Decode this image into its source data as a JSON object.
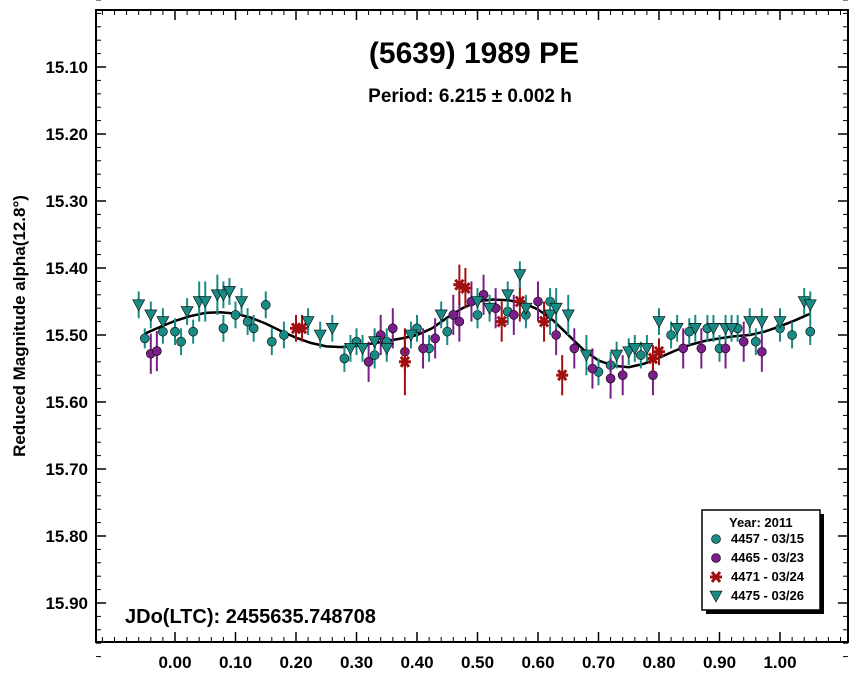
{
  "chart_data": {
    "type": "scatter",
    "title": "(5639) 1989 PE",
    "subtitle": "Period: 6.215 ± 0.002 h",
    "ylabel": "Reduced Magnitude alpha(12.8°)",
    "xlabel": "",
    "annotation": "JDo(LTC): 2455635.748708",
    "xlim": [
      -0.13,
      1.12
    ],
    "ylim": [
      15.0,
      15.99
    ],
    "y_inverted": true,
    "grid": false,
    "x_ticks": [
      "0.00",
      "0.10",
      "0.20",
      "0.30",
      "0.40",
      "0.50",
      "0.60",
      "0.70",
      "0.80",
      "0.90",
      "1.00"
    ],
    "x_tick_values": [
      0,
      0.1,
      0.2,
      0.3,
      0.4,
      0.5,
      0.6,
      0.7,
      0.8,
      0.9,
      1.0
    ],
    "y_ticks": [
      "15.10",
      "15.20",
      "15.30",
      "15.40",
      "15.50",
      "15.60",
      "15.70",
      "15.80",
      "15.90"
    ],
    "y_tick_values": [
      15.1,
      15.2,
      15.3,
      15.4,
      15.5,
      15.6,
      15.7,
      15.8,
      15.9
    ],
    "legend": {
      "title": "Year: 2011",
      "placement": "bottom-right",
      "entries": [
        {
          "label": "4457 - 03/15",
          "marker": "circle",
          "color": "#1a8a84"
        },
        {
          "label": "4465 - 03/23",
          "marker": "circle",
          "color": "#7a1f8a"
        },
        {
          "label": "4471 - 03/24",
          "marker": "asterisk",
          "color": "#a01010"
        },
        {
          "label": "4475 - 03/26",
          "marker": "triangle-down",
          "color": "#1a8a84"
        }
      ]
    },
    "fit_curve": {
      "color": "#000000",
      "x": [
        -0.05,
        -0.025,
        0.0,
        0.025,
        0.05,
        0.075,
        0.1,
        0.125,
        0.15,
        0.175,
        0.2,
        0.225,
        0.25,
        0.275,
        0.3,
        0.325,
        0.35,
        0.375,
        0.4,
        0.425,
        0.45,
        0.475,
        0.5,
        0.525,
        0.55,
        0.575,
        0.6,
        0.625,
        0.65,
        0.675,
        0.7,
        0.725,
        0.75,
        0.775,
        0.8,
        0.825,
        0.85,
        0.875,
        0.9,
        0.925,
        0.95,
        0.975,
        1.0,
        1.025,
        1.05
      ],
      "y": [
        15.498,
        15.488,
        15.479,
        15.472,
        15.467,
        15.466,
        15.468,
        15.474,
        15.483,
        15.494,
        15.504,
        15.512,
        15.517,
        15.518,
        15.516,
        15.513,
        15.509,
        15.505,
        15.5,
        15.49,
        15.474,
        15.46,
        15.45,
        15.447,
        15.448,
        15.452,
        15.462,
        15.478,
        15.5,
        15.522,
        15.538,
        15.546,
        15.548,
        15.543,
        15.534,
        15.524,
        15.515,
        15.509,
        15.505,
        15.502,
        15.5,
        15.495,
        15.487,
        15.478,
        15.468
      ]
    },
    "series": [
      {
        "name": "4457 - 03/15",
        "marker": "circle",
        "color": "#1a8a84",
        "points": [
          {
            "x": -0.05,
            "y": 15.505,
            "e": 0.015
          },
          {
            "x": -0.02,
            "y": 15.495,
            "e": 0.018
          },
          {
            "x": 0.0,
            "y": 15.495,
            "e": 0.02
          },
          {
            "x": 0.01,
            "y": 15.51,
            "e": 0.02
          },
          {
            "x": 0.03,
            "y": 15.495,
            "e": 0.018
          },
          {
            "x": 0.08,
            "y": 15.49,
            "e": 0.02
          },
          {
            "x": 0.1,
            "y": 15.47,
            "e": 0.02
          },
          {
            "x": 0.12,
            "y": 15.48,
            "e": 0.02
          },
          {
            "x": 0.13,
            "y": 15.49,
            "e": 0.02
          },
          {
            "x": 0.15,
            "y": 15.455,
            "e": 0.02
          },
          {
            "x": 0.16,
            "y": 15.51,
            "e": 0.02
          },
          {
            "x": 0.18,
            "y": 15.5,
            "e": 0.02
          },
          {
            "x": 0.28,
            "y": 15.535,
            "e": 0.02
          },
          {
            "x": 0.3,
            "y": 15.51,
            "e": 0.02
          },
          {
            "x": 0.33,
            "y": 15.53,
            "e": 0.02
          },
          {
            "x": 0.35,
            "y": 15.51,
            "e": 0.02
          },
          {
            "x": 0.4,
            "y": 15.49,
            "e": 0.02
          },
          {
            "x": 0.42,
            "y": 15.52,
            "e": 0.02
          },
          {
            "x": 0.45,
            "y": 15.495,
            "e": 0.02
          },
          {
            "x": 0.5,
            "y": 15.47,
            "e": 0.02
          },
          {
            "x": 0.55,
            "y": 15.465,
            "e": 0.02
          },
          {
            "x": 0.58,
            "y": 15.47,
            "e": 0.02
          },
          {
            "x": 0.62,
            "y": 15.45,
            "e": 0.02
          },
          {
            "x": 0.7,
            "y": 15.555,
            "e": 0.02
          },
          {
            "x": 0.72,
            "y": 15.545,
            "e": 0.02
          },
          {
            "x": 0.77,
            "y": 15.53,
            "e": 0.02
          },
          {
            "x": 0.82,
            "y": 15.5,
            "e": 0.02
          },
          {
            "x": 0.85,
            "y": 15.495,
            "e": 0.02
          },
          {
            "x": 0.88,
            "y": 15.49,
            "e": 0.02
          },
          {
            "x": 0.9,
            "y": 15.52,
            "e": 0.02
          },
          {
            "x": 0.93,
            "y": 15.49,
            "e": 0.02
          },
          {
            "x": 0.96,
            "y": 15.51,
            "e": 0.02
          },
          {
            "x": 1.0,
            "y": 15.49,
            "e": 0.02
          },
          {
            "x": 1.02,
            "y": 15.5,
            "e": 0.02
          },
          {
            "x": 1.05,
            "y": 15.495,
            "e": 0.02
          }
        ]
      },
      {
        "name": "4465 - 03/23",
        "marker": "circle",
        "color": "#7a1f8a",
        "points": [
          {
            "x": -0.04,
            "y": 15.528,
            "e": 0.03
          },
          {
            "x": -0.03,
            "y": 15.524,
            "e": 0.03
          },
          {
            "x": 0.32,
            "y": 15.54,
            "e": 0.03
          },
          {
            "x": 0.34,
            "y": 15.5,
            "e": 0.03
          },
          {
            "x": 0.36,
            "y": 15.49,
            "e": 0.03
          },
          {
            "x": 0.38,
            "y": 15.525,
            "e": 0.03
          },
          {
            "x": 0.41,
            "y": 15.52,
            "e": 0.03
          },
          {
            "x": 0.43,
            "y": 15.505,
            "e": 0.03
          },
          {
            "x": 0.46,
            "y": 15.47,
            "e": 0.03
          },
          {
            "x": 0.47,
            "y": 15.48,
            "e": 0.03
          },
          {
            "x": 0.49,
            "y": 15.45,
            "e": 0.03
          },
          {
            "x": 0.51,
            "y": 15.44,
            "e": 0.03
          },
          {
            "x": 0.53,
            "y": 15.46,
            "e": 0.03
          },
          {
            "x": 0.56,
            "y": 15.47,
            "e": 0.03
          },
          {
            "x": 0.6,
            "y": 15.45,
            "e": 0.03
          },
          {
            "x": 0.63,
            "y": 15.5,
            "e": 0.03
          },
          {
            "x": 0.66,
            "y": 15.52,
            "e": 0.03
          },
          {
            "x": 0.69,
            "y": 15.55,
            "e": 0.03
          },
          {
            "x": 0.72,
            "y": 15.565,
            "e": 0.03
          },
          {
            "x": 0.74,
            "y": 15.56,
            "e": 0.03
          },
          {
            "x": 0.79,
            "y": 15.56,
            "e": 0.03
          },
          {
            "x": 0.84,
            "y": 15.52,
            "e": 0.03
          },
          {
            "x": 0.87,
            "y": 15.52,
            "e": 0.03
          },
          {
            "x": 0.91,
            "y": 15.52,
            "e": 0.03
          },
          {
            "x": 0.94,
            "y": 15.51,
            "e": 0.03
          },
          {
            "x": 0.97,
            "y": 15.525,
            "e": 0.03
          }
        ]
      },
      {
        "name": "4471 - 03/24",
        "marker": "asterisk",
        "color": "#a01010",
        "points": [
          {
            "x": 0.2,
            "y": 15.49,
            "e": 0.02
          },
          {
            "x": 0.21,
            "y": 15.49,
            "e": 0.02
          },
          {
            "x": 0.38,
            "y": 15.54,
            "e": 0.05
          },
          {
            "x": 0.47,
            "y": 15.425,
            "e": 0.03
          },
          {
            "x": 0.48,
            "y": 15.43,
            "e": 0.03
          },
          {
            "x": 0.54,
            "y": 15.48,
            "e": 0.03
          },
          {
            "x": 0.57,
            "y": 15.45,
            "e": 0.03
          },
          {
            "x": 0.61,
            "y": 15.48,
            "e": 0.03
          },
          {
            "x": 0.64,
            "y": 15.56,
            "e": 0.03
          },
          {
            "x": 0.79,
            "y": 15.535,
            "e": 0.02
          },
          {
            "x": 0.8,
            "y": 15.525,
            "e": 0.02
          }
        ]
      },
      {
        "name": "4475 - 03/26",
        "marker": "triangle-down",
        "color": "#1a8a84",
        "points": [
          {
            "x": -0.06,
            "y": 15.455,
            "e": 0.02
          },
          {
            "x": -0.04,
            "y": 15.47,
            "e": 0.02
          },
          {
            "x": -0.02,
            "y": 15.48,
            "e": 0.02
          },
          {
            "x": 0.02,
            "y": 15.465,
            "e": 0.02
          },
          {
            "x": 0.04,
            "y": 15.45,
            "e": 0.03
          },
          {
            "x": 0.05,
            "y": 15.45,
            "e": 0.03
          },
          {
            "x": 0.07,
            "y": 15.44,
            "e": 0.03
          },
          {
            "x": 0.08,
            "y": 15.44,
            "e": 0.02
          },
          {
            "x": 0.09,
            "y": 15.435,
            "e": 0.02
          },
          {
            "x": 0.11,
            "y": 15.45,
            "e": 0.02
          },
          {
            "x": 0.22,
            "y": 15.48,
            "e": 0.02
          },
          {
            "x": 0.24,
            "y": 15.5,
            "e": 0.02
          },
          {
            "x": 0.26,
            "y": 15.49,
            "e": 0.02
          },
          {
            "x": 0.29,
            "y": 15.52,
            "e": 0.02
          },
          {
            "x": 0.31,
            "y": 15.52,
            "e": 0.02
          },
          {
            "x": 0.33,
            "y": 15.51,
            "e": 0.02
          },
          {
            "x": 0.35,
            "y": 15.52,
            "e": 0.02
          },
          {
            "x": 0.39,
            "y": 15.5,
            "e": 0.02
          },
          {
            "x": 0.44,
            "y": 15.47,
            "e": 0.02
          },
          {
            "x": 0.5,
            "y": 15.45,
            "e": 0.02
          },
          {
            "x": 0.52,
            "y": 15.46,
            "e": 0.02
          },
          {
            "x": 0.55,
            "y": 15.44,
            "e": 0.02
          },
          {
            "x": 0.57,
            "y": 15.41,
            "e": 0.02
          },
          {
            "x": 0.58,
            "y": 15.46,
            "e": 0.02
          },
          {
            "x": 0.62,
            "y": 15.47,
            "e": 0.03
          },
          {
            "x": 0.63,
            "y": 15.46,
            "e": 0.03
          },
          {
            "x": 0.65,
            "y": 15.47,
            "e": 0.03
          },
          {
            "x": 0.68,
            "y": 15.53,
            "e": 0.03
          },
          {
            "x": 0.73,
            "y": 15.53,
            "e": 0.02
          },
          {
            "x": 0.75,
            "y": 15.525,
            "e": 0.02
          },
          {
            "x": 0.76,
            "y": 15.52,
            "e": 0.02
          },
          {
            "x": 0.78,
            "y": 15.52,
            "e": 0.02
          },
          {
            "x": 0.8,
            "y": 15.48,
            "e": 0.02
          },
          {
            "x": 0.83,
            "y": 15.49,
            "e": 0.02
          },
          {
            "x": 0.86,
            "y": 15.49,
            "e": 0.02
          },
          {
            "x": 0.89,
            "y": 15.49,
            "e": 0.02
          },
          {
            "x": 0.91,
            "y": 15.49,
            "e": 0.02
          },
          {
            "x": 0.92,
            "y": 15.49,
            "e": 0.02
          },
          {
            "x": 0.95,
            "y": 15.48,
            "e": 0.02
          },
          {
            "x": 0.97,
            "y": 15.48,
            "e": 0.02
          },
          {
            "x": 1.0,
            "y": 15.48,
            "e": 0.02
          },
          {
            "x": 1.04,
            "y": 15.45,
            "e": 0.02
          },
          {
            "x": 1.05,
            "y": 15.455,
            "e": 0.02
          }
        ]
      }
    ]
  }
}
